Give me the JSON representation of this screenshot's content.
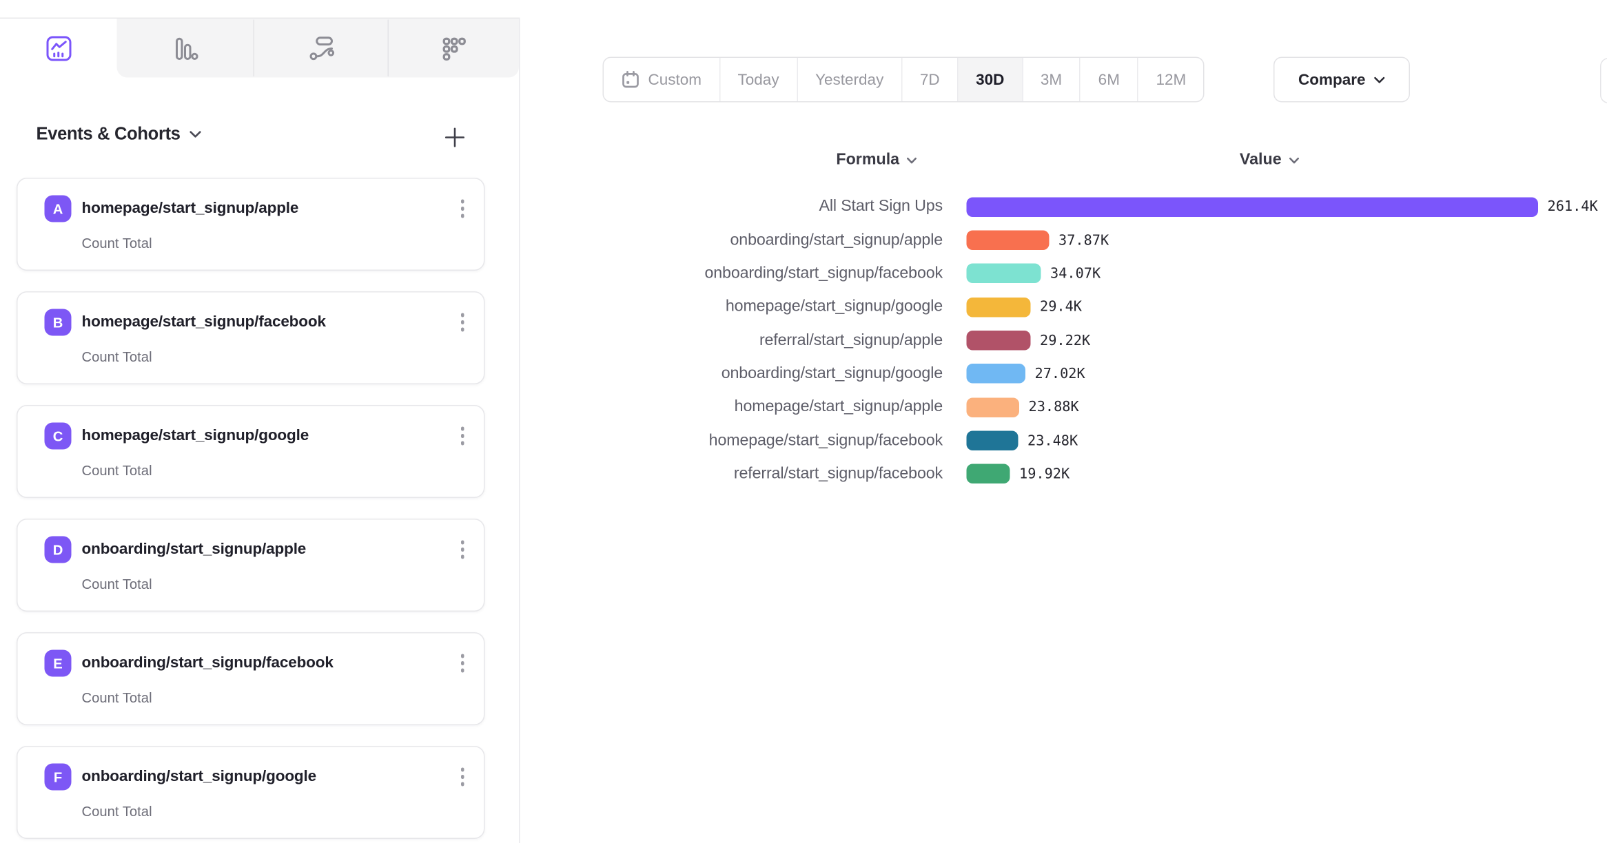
{
  "chart_type_tabs": {
    "items": [
      {
        "id": "insights",
        "icon": "line-chart-icon",
        "active": true
      },
      {
        "id": "bar",
        "icon": "bar-chart-icon",
        "active": false
      },
      {
        "id": "flows",
        "icon": "flows-icon",
        "active": false
      },
      {
        "id": "retention",
        "icon": "grid-dots-icon",
        "active": false
      }
    ]
  },
  "sidebar": {
    "title": "Events & Cohorts",
    "add_button": "+",
    "events": [
      {
        "letter": "A",
        "name": "homepage/start_signup/apple",
        "metric": "Count Total"
      },
      {
        "letter": "B",
        "name": "homepage/start_signup/facebook",
        "metric": "Count Total"
      },
      {
        "letter": "C",
        "name": "homepage/start_signup/google",
        "metric": "Count Total"
      },
      {
        "letter": "D",
        "name": "onboarding/start_signup/apple",
        "metric": "Count Total"
      },
      {
        "letter": "E",
        "name": "onboarding/start_signup/facebook",
        "metric": "Count Total"
      },
      {
        "letter": "F",
        "name": "onboarding/start_signup/google",
        "metric": "Count Total"
      }
    ]
  },
  "toolbar": {
    "date_ranges": [
      {
        "label": "Custom",
        "has_icon": true,
        "active": false
      },
      {
        "label": "Today",
        "active": false
      },
      {
        "label": "Yesterday",
        "active": false
      },
      {
        "label": "7D",
        "active": false
      },
      {
        "label": "30D",
        "active": true
      },
      {
        "label": "3M",
        "active": false
      },
      {
        "label": "6M",
        "active": false
      },
      {
        "label": "12M",
        "active": false
      }
    ],
    "compare_label": "Compare"
  },
  "chart_data": {
    "type": "bar",
    "orientation": "horizontal",
    "unit": "K",
    "columns": {
      "formula": "Formula",
      "value": "Value"
    },
    "xlim": [
      0,
      261.4
    ],
    "rows": [
      {
        "label": "All Start Sign Ups",
        "value": 261.4,
        "display": "261.4K",
        "color": "#7b55fb"
      },
      {
        "label": "onboarding/start_signup/apple",
        "value": 37.87,
        "display": "37.87K",
        "color": "#f8704f"
      },
      {
        "label": "onboarding/start_signup/facebook",
        "value": 34.07,
        "display": "34.07K",
        "color": "#7de2d1"
      },
      {
        "label": "homepage/start_signup/google",
        "value": 29.4,
        "display": "29.4K",
        "color": "#f4b73a"
      },
      {
        "label": "referral/start_signup/apple",
        "value": 29.22,
        "display": "29.22K",
        "color": "#b15268"
      },
      {
        "label": "onboarding/start_signup/google",
        "value": 27.02,
        "display": "27.02K",
        "color": "#70b8f3"
      },
      {
        "label": "homepage/start_signup/apple",
        "value": 23.88,
        "display": "23.88K",
        "color": "#fbb17d"
      },
      {
        "label": "homepage/start_signup/facebook",
        "value": 23.48,
        "display": "23.48K",
        "color": "#1f7597"
      },
      {
        "label": "referral/start_signup/facebook",
        "value": 19.92,
        "display": "19.92K",
        "color": "#3fa873"
      }
    ]
  }
}
